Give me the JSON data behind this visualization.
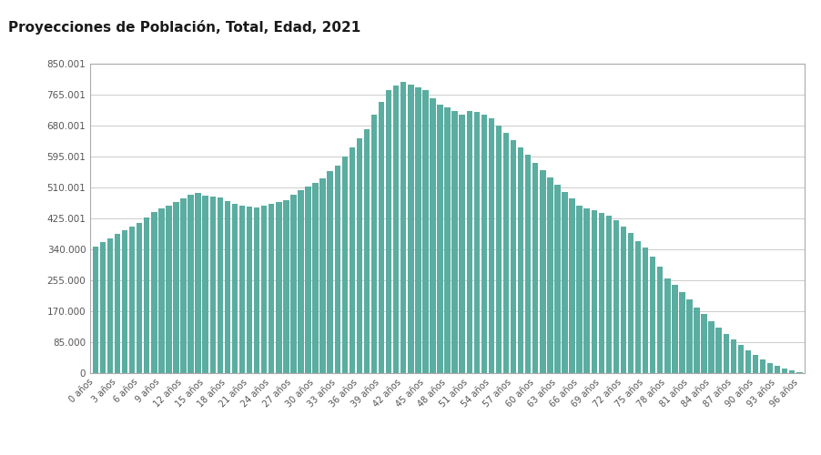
{
  "title": "Proyecciones de Población, Total, Edad, 2021",
  "title_bg": "#a8d0d0",
  "bar_color": "#5aada0",
  "background_color": "#ffffff",
  "plot_bg": "#ffffff",
  "ylabel_format": "spanish_dot",
  "ylim": [
    0,
    850001
  ],
  "yticks": [
    0,
    85000,
    170000,
    255000,
    340000,
    425001,
    510001,
    595001,
    680001,
    765001,
    850001
  ],
  "ytick_labels": [
    "0",
    "85.000",
    "170.000",
    "255.000",
    "340.000",
    "425.001",
    "510.001",
    "595.001",
    "680.001",
    "765.001",
    "850.001"
  ],
  "ages": [
    0,
    1,
    2,
    3,
    4,
    5,
    6,
    7,
    8,
    9,
    10,
    11,
    12,
    13,
    14,
    15,
    16,
    17,
    18,
    19,
    20,
    21,
    22,
    23,
    24,
    25,
    26,
    27,
    28,
    29,
    30,
    31,
    32,
    33,
    34,
    35,
    36,
    37,
    38,
    39,
    40,
    41,
    42,
    43,
    44,
    45,
    46,
    47,
    48,
    49,
    50,
    51,
    52,
    53,
    54,
    55,
    56,
    57,
    58,
    59,
    60,
    61,
    62,
    63,
    64,
    65,
    66,
    67,
    68,
    69,
    70,
    71,
    72,
    73,
    74,
    75,
    76,
    77,
    78,
    79,
    80,
    81,
    82,
    83,
    84,
    85,
    86,
    87,
    88,
    89,
    90,
    91,
    92,
    93,
    94,
    95,
    96
  ],
  "age_labels": [
    "0 años",
    "3 años",
    "6 años",
    "9 años",
    "12 años",
    "15 años",
    "18 años",
    "21 años",
    "24 años",
    "27 años",
    "30 años",
    "33 años",
    "36 años",
    "39 años",
    "42 años",
    "45 años",
    "48 años",
    "51 años",
    "54 años",
    "57 años",
    "60 años",
    "63 años",
    "66 años",
    "69 años",
    "72 años",
    "75 años",
    "78 años",
    "81 años",
    "84 años",
    "87 años",
    "90 años",
    "93 años",
    "96 años"
  ],
  "values": [
    348000,
    360000,
    370000,
    383000,
    393000,
    403000,
    413000,
    428000,
    443000,
    452000,
    460000,
    470000,
    480000,
    490000,
    495000,
    487000,
    485000,
    483000,
    473000,
    464000,
    459000,
    457000,
    455000,
    460000,
    465000,
    469000,
    476000,
    490000,
    502000,
    513000,
    522000,
    535000,
    556000,
    570000,
    595000,
    620000,
    645000,
    670000,
    710000,
    745000,
    778000,
    790000,
    800000,
    793000,
    785000,
    777000,
    755000,
    738000,
    730000,
    720000,
    710000,
    720000,
    718000,
    710000,
    700000,
    680000,
    660000,
    640000,
    620000,
    600000,
    578000,
    557000,
    538000,
    518000,
    498000,
    479000,
    460000,
    453000,
    447000,
    440000,
    432000,
    420000,
    403000,
    384000,
    363000,
    345000,
    320000,
    292000,
    260000,
    242000,
    222000,
    202000,
    180000,
    162000,
    143000,
    125000,
    108000,
    92000,
    77000,
    63000,
    50000,
    38000,
    28000,
    19000,
    12000,
    7000,
    3000
  ]
}
